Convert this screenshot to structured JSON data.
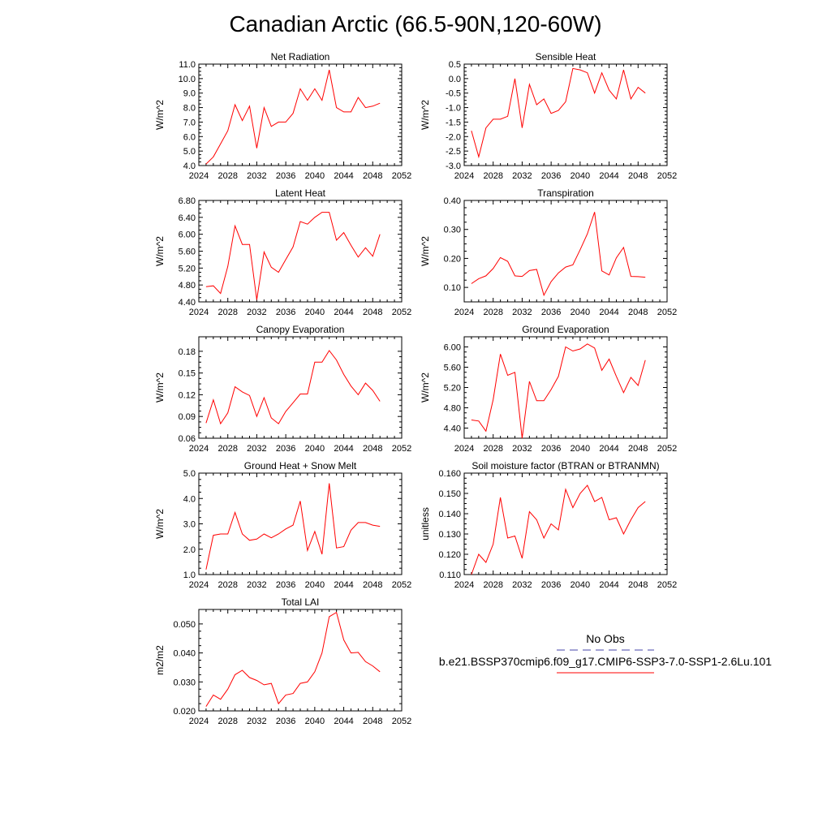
{
  "title": "Canadian Arctic (66.5-90N,120-60W)",
  "legend": {
    "entries": [
      {
        "label": "No Obs",
        "color": "#4444aa",
        "dash": "dashed"
      },
      {
        "label": "b.e21.BSSP370cmip6.f09_g17.CMIP6-SSP3-7.0-SSP1-2.6Lu.101",
        "color": "#ff0000",
        "dash": "solid"
      }
    ]
  },
  "chart_data": [
    {
      "type": "line",
      "title": "Net Radiation",
      "xlabel": "",
      "ylabel": "W/m^2",
      "xlim": [
        2024,
        2052
      ],
      "ylim": [
        4.0,
        11.0
      ],
      "xticks": [
        2024,
        2028,
        2032,
        2036,
        2040,
        2044,
        2048,
        2052
      ],
      "yticks": [
        4.0,
        5.0,
        6.0,
        7.0,
        8.0,
        9.0,
        10.0,
        11.0
      ],
      "ytick_decimals": 1,
      "series": [
        {
          "color": "#ff0000",
          "x": [
            2025,
            2026,
            2027,
            2028,
            2029,
            2030,
            2031,
            2032,
            2033,
            2034,
            2035,
            2036,
            2037,
            2038,
            2039,
            2040,
            2041,
            2042,
            2043,
            2044,
            2045,
            2046,
            2047,
            2048,
            2049
          ],
          "y": [
            4.1,
            4.6,
            5.5,
            6.4,
            8.2,
            7.1,
            8.1,
            5.2,
            8.0,
            6.7,
            7.0,
            7.0,
            7.6,
            9.3,
            8.5,
            9.3,
            8.5,
            10.6,
            8.0,
            7.7,
            7.7,
            8.7,
            8.0,
            8.1,
            8.3
          ]
        }
      ]
    },
    {
      "type": "line",
      "title": "Sensible Heat",
      "xlabel": "",
      "ylabel": "W/m^2",
      "xlim": [
        2024,
        2052
      ],
      "ylim": [
        -3.0,
        0.5
      ],
      "xticks": [
        2024,
        2028,
        2032,
        2036,
        2040,
        2044,
        2048,
        2052
      ],
      "yticks": [
        -3.0,
        -2.5,
        -2.0,
        -1.5,
        -1.0,
        -0.5,
        0.0,
        0.5
      ],
      "ytick_decimals": 1,
      "series": [
        {
          "color": "#ff0000",
          "x": [
            2025,
            2026,
            2027,
            2028,
            2029,
            2030,
            2031,
            2032,
            2033,
            2034,
            2035,
            2036,
            2037,
            2038,
            2039,
            2040,
            2041,
            2042,
            2043,
            2044,
            2045,
            2046,
            2047,
            2048,
            2049
          ],
          "y": [
            -1.8,
            -2.7,
            -1.7,
            -1.4,
            -1.4,
            -1.3,
            0.0,
            -1.7,
            -0.2,
            -0.9,
            -0.7,
            -1.2,
            -1.1,
            -0.8,
            0.35,
            0.3,
            0.2,
            -0.5,
            0.2,
            -0.4,
            -0.7,
            0.3,
            -0.7,
            -0.3,
            -0.5
          ]
        }
      ]
    },
    {
      "type": "line",
      "title": "Latent Heat",
      "xlabel": "",
      "ylabel": "W/m^2",
      "xlim": [
        2024,
        2052
      ],
      "ylim": [
        4.4,
        6.8
      ],
      "xticks": [
        2024,
        2028,
        2032,
        2036,
        2040,
        2044,
        2048,
        2052
      ],
      "yticks": [
        4.4,
        4.8,
        5.2,
        5.6,
        6.0,
        6.4,
        6.8
      ],
      "ytick_decimals": 2,
      "series": [
        {
          "color": "#ff0000",
          "x": [
            2025,
            2026,
            2027,
            2028,
            2029,
            2030,
            2031,
            2032,
            2033,
            2034,
            2035,
            2036,
            2037,
            2038,
            2039,
            2040,
            2041,
            2042,
            2043,
            2044,
            2045,
            2046,
            2047,
            2048,
            2049
          ],
          "y": [
            4.76,
            4.78,
            4.6,
            5.24,
            6.2,
            5.76,
            5.76,
            4.45,
            5.58,
            5.22,
            5.1,
            5.4,
            5.7,
            6.3,
            6.24,
            6.4,
            6.52,
            6.52,
            5.86,
            6.04,
            5.74,
            5.46,
            5.68,
            5.48,
            6.0
          ]
        }
      ]
    },
    {
      "type": "line",
      "title": "Transpiration",
      "xlabel": "",
      "ylabel": "W/m^2",
      "xlim": [
        2024,
        2052
      ],
      "ylim": [
        0.05,
        0.4
      ],
      "xticks": [
        2024,
        2028,
        2032,
        2036,
        2040,
        2044,
        2048,
        2052
      ],
      "yticks": [
        0.1,
        0.2,
        0.3,
        0.4
      ],
      "ytick_decimals": 2,
      "series": [
        {
          "color": "#ff0000",
          "x": [
            2025,
            2026,
            2027,
            2028,
            2029,
            2030,
            2031,
            2032,
            2033,
            2034,
            2035,
            2036,
            2037,
            2038,
            2039,
            2040,
            2041,
            2042,
            2043,
            2044,
            2045,
            2046,
            2047,
            2048,
            2049
          ],
          "y": [
            0.113,
            0.13,
            0.14,
            0.165,
            0.203,
            0.19,
            0.14,
            0.138,
            0.158,
            0.162,
            0.073,
            0.12,
            0.15,
            0.17,
            0.178,
            0.23,
            0.285,
            0.36,
            0.157,
            0.143,
            0.202,
            0.238,
            0.138,
            0.137,
            0.135
          ]
        }
      ]
    },
    {
      "type": "line",
      "title": "Canopy Evaporation",
      "xlabel": "",
      "ylabel": "W/m^2",
      "xlim": [
        2024,
        2052
      ],
      "ylim": [
        0.06,
        0.2
      ],
      "xticks": [
        2024,
        2028,
        2032,
        2036,
        2040,
        2044,
        2048,
        2052
      ],
      "yticks": [
        0.06,
        0.09,
        0.12,
        0.15,
        0.18
      ],
      "ytick_decimals": 2,
      "series": [
        {
          "color": "#ff0000",
          "x": [
            2025,
            2026,
            2027,
            2028,
            2029,
            2030,
            2031,
            2032,
            2033,
            2034,
            2035,
            2036,
            2037,
            2038,
            2039,
            2040,
            2041,
            2042,
            2043,
            2044,
            2045,
            2046,
            2047,
            2048,
            2049
          ],
          "y": [
            0.081,
            0.113,
            0.08,
            0.095,
            0.131,
            0.124,
            0.119,
            0.09,
            0.116,
            0.088,
            0.08,
            0.097,
            0.109,
            0.121,
            0.121,
            0.165,
            0.165,
            0.181,
            0.168,
            0.148,
            0.132,
            0.12,
            0.136,
            0.126,
            0.111
          ]
        }
      ]
    },
    {
      "type": "line",
      "title": "Ground Evaporation",
      "xlabel": "",
      "ylabel": "W/m^2",
      "xlim": [
        2024,
        2052
      ],
      "ylim": [
        4.2,
        6.2
      ],
      "xticks": [
        2024,
        2028,
        2032,
        2036,
        2040,
        2044,
        2048,
        2052
      ],
      "yticks": [
        4.4,
        4.8,
        5.2,
        5.6,
        6.0
      ],
      "ytick_decimals": 2,
      "series": [
        {
          "color": "#ff0000",
          "x": [
            2025,
            2026,
            2027,
            2028,
            2029,
            2030,
            2031,
            2032,
            2033,
            2034,
            2035,
            2036,
            2037,
            2038,
            2039,
            2040,
            2041,
            2042,
            2043,
            2044,
            2045,
            2046,
            2047,
            2048,
            2049
          ],
          "y": [
            4.56,
            4.54,
            4.34,
            4.96,
            5.86,
            5.44,
            5.5,
            4.2,
            5.32,
            4.94,
            4.94,
            5.16,
            5.42,
            6.0,
            5.92,
            5.96,
            6.06,
            5.98,
            5.54,
            5.76,
            5.42,
            5.1,
            5.4,
            5.24,
            5.74
          ]
        }
      ]
    },
    {
      "type": "line",
      "title": "Ground Heat + Snow Melt",
      "xlabel": "",
      "ylabel": "W/m^2",
      "xlim": [
        2024,
        2052
      ],
      "ylim": [
        1.0,
        5.0
      ],
      "xticks": [
        2024,
        2028,
        2032,
        2036,
        2040,
        2044,
        2048,
        2052
      ],
      "yticks": [
        1.0,
        2.0,
        3.0,
        4.0,
        5.0
      ],
      "ytick_decimals": 1,
      "series": [
        {
          "color": "#ff0000",
          "x": [
            2025,
            2026,
            2027,
            2028,
            2029,
            2030,
            2031,
            2032,
            2033,
            2034,
            2035,
            2036,
            2037,
            2038,
            2039,
            2040,
            2041,
            2042,
            2043,
            2044,
            2045,
            2046,
            2047,
            2048,
            2049
          ],
          "y": [
            1.2,
            2.55,
            2.6,
            2.6,
            3.45,
            2.6,
            2.35,
            2.4,
            2.6,
            2.45,
            2.6,
            2.8,
            2.95,
            3.9,
            1.95,
            2.7,
            1.8,
            4.6,
            2.05,
            2.1,
            2.75,
            3.05,
            3.05,
            2.95,
            2.9
          ]
        }
      ]
    },
    {
      "type": "line",
      "title": "Soil moisture factor (BTRAN or BTRANMN)",
      "xlabel": "",
      "ylabel": "unitless",
      "xlim": [
        2024,
        2052
      ],
      "ylim": [
        0.11,
        0.16
      ],
      "xticks": [
        2024,
        2028,
        2032,
        2036,
        2040,
        2044,
        2048,
        2052
      ],
      "yticks": [
        0.11,
        0.12,
        0.13,
        0.14,
        0.15,
        0.16
      ],
      "ytick_decimals": 3,
      "series": [
        {
          "color": "#ff0000",
          "x": [
            2025,
            2026,
            2027,
            2028,
            2029,
            2030,
            2031,
            2032,
            2033,
            2034,
            2035,
            2036,
            2037,
            2038,
            2039,
            2040,
            2041,
            2042,
            2043,
            2044,
            2045,
            2046,
            2047,
            2048,
            2049
          ],
          "y": [
            0.11,
            0.12,
            0.116,
            0.125,
            0.148,
            0.128,
            0.129,
            0.118,
            0.141,
            0.137,
            0.128,
            0.135,
            0.132,
            0.152,
            0.143,
            0.15,
            0.154,
            0.146,
            0.148,
            0.137,
            0.138,
            0.13,
            0.137,
            0.143,
            0.146
          ]
        }
      ]
    },
    {
      "type": "line",
      "title": "Total LAI",
      "xlabel": "",
      "ylabel": "m2/m2",
      "xlim": [
        2024,
        2052
      ],
      "ylim": [
        0.02,
        0.055
      ],
      "xticks": [
        2024,
        2028,
        2032,
        2036,
        2040,
        2044,
        2048,
        2052
      ],
      "yticks": [
        0.02,
        0.03,
        0.04,
        0.05
      ],
      "ytick_decimals": 3,
      "series": [
        {
          "color": "#ff0000",
          "x": [
            2025,
            2026,
            2027,
            2028,
            2029,
            2030,
            2031,
            2032,
            2033,
            2034,
            2035,
            2036,
            2037,
            2038,
            2039,
            2040,
            2041,
            2042,
            2043,
            2044,
            2045,
            2046,
            2047,
            2048,
            2049
          ],
          "y": [
            0.0215,
            0.0255,
            0.024,
            0.0275,
            0.0325,
            0.034,
            0.0315,
            0.0305,
            0.029,
            0.0295,
            0.0225,
            0.0255,
            0.026,
            0.0295,
            0.03,
            0.0335,
            0.04,
            0.0525,
            0.054,
            0.0445,
            0.04,
            0.0402,
            0.037,
            0.0355,
            0.0335
          ]
        }
      ]
    }
  ]
}
